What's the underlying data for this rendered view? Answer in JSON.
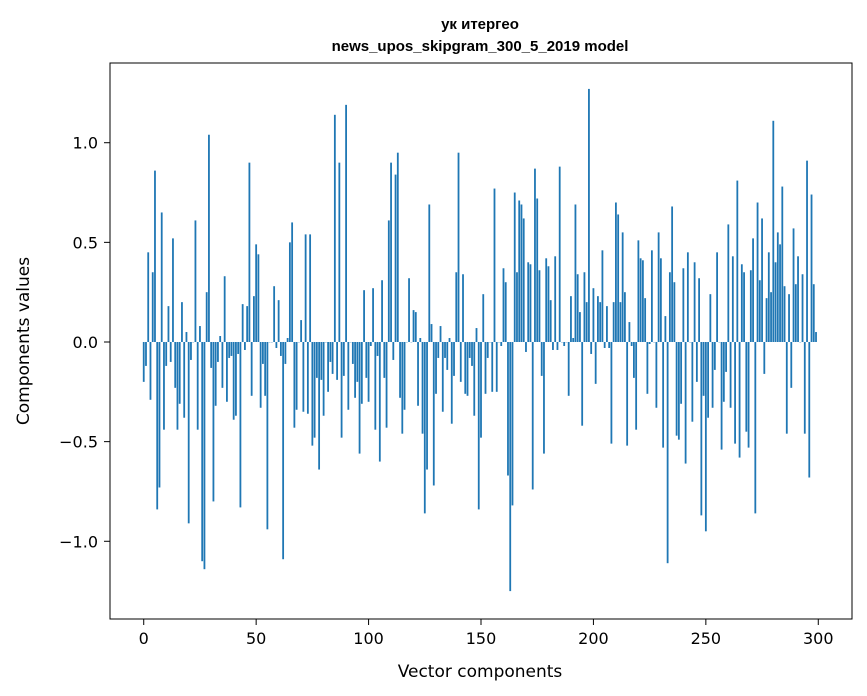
{
  "chart_data": {
    "type": "bar",
    "title_lines": [
      "ук итергео",
      "news_upos_skipgram_300_5_2019 model"
    ],
    "xlabel": "Vector components",
    "ylabel": "Components values",
    "xlim": [
      -15,
      315
    ],
    "ylim": [
      -1.39,
      1.4
    ],
    "xticks": [
      0,
      50,
      100,
      150,
      200,
      250,
      300
    ],
    "yticks": [
      1.0,
      0.5,
      0.0,
      -0.5,
      -1.0
    ],
    "ytick_labels": [
      "1.0",
      "0.5",
      "0.0",
      "−0.5",
      "−1.0"
    ],
    "bar_color": "#1f77b4",
    "grid": false,
    "values": [
      -0.2,
      -0.12,
      0.45,
      -0.29,
      0.35,
      0.86,
      -0.84,
      -0.73,
      0.65,
      -0.44,
      -0.12,
      0.18,
      -0.1,
      0.52,
      -0.23,
      -0.44,
      -0.31,
      0.2,
      -0.38,
      0.05,
      -0.91,
      -0.09,
      0.0,
      0.61,
      -0.44,
      0.08,
      -1.1,
      -1.14,
      0.25,
      1.04,
      -0.13,
      -0.8,
      -0.32,
      -0.1,
      0.03,
      -0.23,
      0.33,
      -0.3,
      -0.08,
      -0.07,
      -0.39,
      -0.37,
      -0.06,
      -0.83,
      0.19,
      -0.04,
      0.18,
      0.9,
      -0.27,
      0.23,
      0.49,
      0.44,
      -0.33,
      -0.11,
      -0.27,
      -0.94,
      0.0,
      0.0,
      0.28,
      -0.03,
      0.21,
      -0.07,
      -1.09,
      -0.11,
      0.02,
      0.5,
      0.6,
      -0.43,
      -0.34,
      0.0,
      0.11,
      -0.35,
      0.54,
      -0.36,
      0.54,
      -0.52,
      -0.48,
      -0.18,
      -0.64,
      -0.19,
      -0.37,
      0.0,
      -0.25,
      -0.1,
      -0.16,
      1.14,
      -0.19,
      0.9,
      -0.48,
      -0.17,
      1.19,
      -0.34,
      0.0,
      -0.11,
      -0.28,
      -0.2,
      -0.56,
      -0.31,
      0.26,
      -0.18,
      -0.3,
      -0.02,
      0.27,
      -0.44,
      -0.07,
      -0.6,
      0.31,
      -0.18,
      -0.43,
      0.61,
      0.9,
      -0.09,
      0.84,
      0.95,
      -0.28,
      -0.46,
      -0.34,
      0.0,
      0.32,
      0.0,
      0.16,
      0.15,
      -0.32,
      0.02,
      -0.46,
      -0.86,
      -0.64,
      0.69,
      0.09,
      -0.72,
      -0.26,
      -0.08,
      0.08,
      -0.35,
      -0.08,
      -0.14,
      0.02,
      -0.41,
      -0.17,
      0.35,
      0.95,
      -0.2,
      0.34,
      -0.26,
      -0.27,
      -0.08,
      -0.12,
      -0.37,
      0.07,
      -0.84,
      -0.48,
      0.24,
      -0.26,
      -0.08,
      0.0,
      -0.25,
      0.77,
      -0.25,
      0.0,
      -0.02,
      0.37,
      0.3,
      -0.67,
      -1.25,
      -0.82,
      0.75,
      0.35,
      0.71,
      0.69,
      0.62,
      -0.05,
      0.4,
      0.39,
      -0.74,
      0.87,
      0.72,
      0.36,
      -0.17,
      -0.56,
      0.42,
      0.38,
      0.21,
      -0.04,
      0.43,
      -0.04,
      0.88,
      0.0,
      -0.02,
      0.0,
      -0.27,
      0.23,
      0.02,
      0.69,
      0.34,
      0.15,
      -0.42,
      0.35,
      0.2,
      1.27,
      -0.06,
      0.27,
      -0.21,
      0.23,
      0.2,
      0.46,
      -0.03,
      0.18,
      -0.03,
      -0.51,
      0.2,
      0.7,
      0.64,
      0.2,
      0.55,
      0.25,
      -0.52,
      0.1,
      -0.02,
      -0.18,
      -0.44,
      0.51,
      0.42,
      0.41,
      0.22,
      -0.26,
      -0.01,
      0.46,
      0.0,
      -0.33,
      0.55,
      0.42,
      -0.53,
      0.13,
      -1.11,
      0.35,
      0.68,
      0.3,
      -0.47,
      -0.49,
      -0.31,
      0.37,
      -0.61,
      0.45,
      0.0,
      -0.4,
      0.4,
      -0.2,
      0.32,
      -0.87,
      -0.27,
      -0.95,
      -0.38,
      0.24,
      -0.33,
      -0.14,
      0.45,
      0.0,
      -0.54,
      -0.3,
      -0.15,
      0.59,
      -0.33,
      0.43,
      -0.51,
      0.81,
      -0.58,
      0.39,
      0.35,
      -0.45,
      -0.53,
      0.36,
      0.52,
      -0.86,
      0.7,
      0.31,
      0.62,
      -0.16,
      0.22,
      0.45,
      0.25,
      1.11,
      0.4,
      0.55,
      0.49,
      0.78,
      0.28,
      -0.46,
      0.24,
      -0.23,
      0.57,
      0.29,
      0.43,
      0.0,
      0.34,
      -0.46,
      0.91,
      -0.68,
      0.74,
      0.29,
      0.05
    ]
  }
}
